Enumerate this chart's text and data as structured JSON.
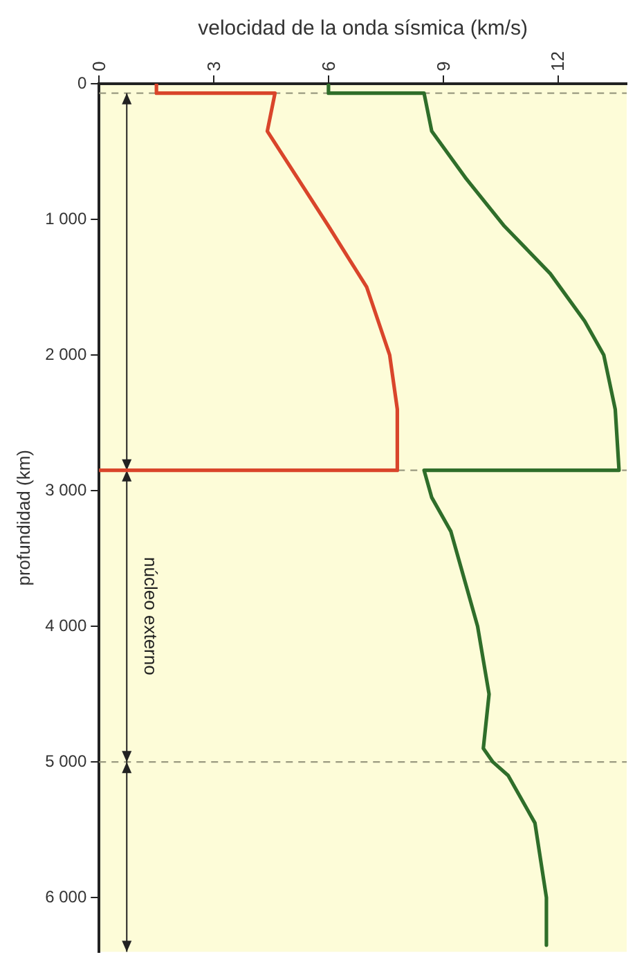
{
  "chart_data": {
    "type": "line",
    "orientation": "horizontal",
    "xlabel": "velocidad de la onda sísmica (km/s)",
    "ylabel": "profundidad (km)",
    "xlim": [
      0,
      13.8
    ],
    "xticks": [
      0,
      3,
      6,
      9,
      12
    ],
    "ylim": [
      6400,
      0
    ],
    "yticks": [
      0,
      {
        "value": 1000,
        "label": "1 000"
      },
      {
        "value": 2000,
        "label": "2 000"
      },
      {
        "value": 3000,
        "label": "3 000"
      },
      {
        "value": 4000,
        "label": "4 000"
      },
      {
        "value": 5000,
        "label": "5 000"
      },
      {
        "value": 6000,
        "label": "6 000"
      }
    ],
    "series": [
      {
        "color": "#d9452b",
        "x": [
          0,
          70,
          70,
          350,
          700,
          1050,
          1500,
          2000,
          2400,
          2850,
          2850
        ],
        "values": [
          1.5,
          1.5,
          4.6,
          4.4,
          5.2,
          6.0,
          7.0,
          7.6,
          7.8,
          7.8,
          0
        ]
      },
      {
        "color": "#2f6e2a",
        "x": [
          0,
          70,
          70,
          350,
          700,
          1050,
          1400,
          1750,
          2000,
          2400,
          2850,
          2850,
          3050,
          3300,
          3700,
          4000,
          4500,
          4900,
          5000,
          5100,
          5450,
          6000,
          6350
        ],
        "values": [
          6.0,
          6.0,
          8.5,
          8.7,
          9.6,
          10.6,
          11.8,
          12.7,
          13.2,
          13.5,
          13.6,
          8.5,
          8.7,
          9.2,
          9.6,
          9.9,
          10.2,
          10.05,
          10.3,
          10.7,
          11.4,
          11.7,
          11.7
        ]
      }
    ],
    "ref_lines": [
      {
        "axis": "y",
        "value": 70,
        "label": null,
        "line_style": "dashed"
      },
      {
        "axis": "y",
        "value": 2850,
        "label": null,
        "line_style": "dashed"
      },
      {
        "axis": "y",
        "value": 5000,
        "label": null,
        "line_style": "dashed"
      }
    ],
    "annotations": [
      "núcleo externo"
    ],
    "grid": false,
    "legend": false,
    "marker": "none",
    "line_style": "solid"
  }
}
